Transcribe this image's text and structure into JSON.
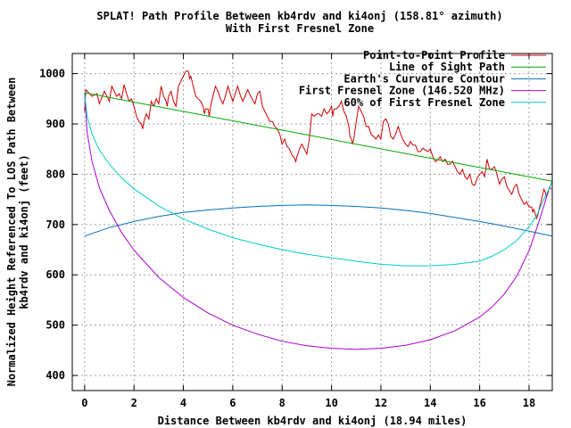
{
  "chart_data": {
    "type": "line",
    "title": "SPLAT! Path Profile Between kb4rdv and ki4onj (158.81° azimuth)",
    "subtitle": "With First Fresnel Zone",
    "xlabel": "Distance Between kb4rdv and ki4onj (18.94 miles)",
    "ylabel_line1": "Normalized Height Referenced To LOS Path Between",
    "ylabel_line2": "kb4rdv and ki4onj (feet)",
    "xlim": [
      -0.5,
      18.94
    ],
    "ylim": [
      370,
      1040
    ],
    "x_ticks": [
      0,
      2,
      4,
      6,
      8,
      10,
      12,
      14,
      16,
      18
    ],
    "y_ticks": [
      400,
      500,
      600,
      700,
      800,
      900,
      1000
    ],
    "grid": true,
    "legend_position": "top-right",
    "series": [
      {
        "name": "Point-to-Point Profile",
        "color": "#cc0000",
        "points": [
          [
            0,
            925
          ],
          [
            0.05,
            968
          ],
          [
            0.3,
            955
          ],
          [
            0.5,
            960
          ],
          [
            0.6,
            940
          ],
          [
            0.8,
            965
          ],
          [
            1.0,
            945
          ],
          [
            1.1,
            975
          ],
          [
            1.3,
            955
          ],
          [
            1.4,
            960
          ],
          [
            1.5,
            950
          ],
          [
            1.6,
            978
          ],
          [
            1.7,
            960
          ],
          [
            1.8,
            945
          ],
          [
            1.9,
            950
          ],
          [
            2.0,
            935
          ],
          [
            2.1,
            915
          ],
          [
            2.2,
            905
          ],
          [
            2.3,
            900
          ],
          [
            2.35,
            890
          ],
          [
            2.4,
            905
          ],
          [
            2.5,
            920
          ],
          [
            2.6,
            910
          ],
          [
            2.7,
            945
          ],
          [
            2.8,
            935
          ],
          [
            2.9,
            950
          ],
          [
            3.0,
            940
          ],
          [
            3.1,
            975
          ],
          [
            3.2,
            955
          ],
          [
            3.3,
            945
          ],
          [
            3.35,
            935
          ],
          [
            3.4,
            955
          ],
          [
            3.5,
            965
          ],
          [
            3.6,
            945
          ],
          [
            3.7,
            935
          ],
          [
            3.8,
            975
          ],
          [
            3.9,
            985
          ],
          [
            4.0,
            995
          ],
          [
            4.1,
            1005
          ],
          [
            4.2,
            1005
          ],
          [
            4.25,
            990
          ],
          [
            4.3,
            995
          ],
          [
            4.4,
            975
          ],
          [
            4.5,
            955
          ],
          [
            4.6,
            950
          ],
          [
            4.7,
            945
          ],
          [
            4.8,
            935
          ],
          [
            4.85,
            920
          ],
          [
            4.9,
            930
          ],
          [
            5.0,
            930
          ],
          [
            5.05,
            915
          ],
          [
            5.1,
            935
          ],
          [
            5.2,
            955
          ],
          [
            5.3,
            975
          ],
          [
            5.4,
            965
          ],
          [
            5.5,
            950
          ],
          [
            5.6,
            940
          ],
          [
            5.7,
            955
          ],
          [
            5.8,
            975
          ],
          [
            5.9,
            960
          ],
          [
            6.0,
            945
          ],
          [
            6.1,
            960
          ],
          [
            6.2,
            975
          ],
          [
            6.3,
            958
          ],
          [
            6.4,
            945
          ],
          [
            6.5,
            955
          ],
          [
            6.6,
            968
          ],
          [
            6.7,
            958
          ],
          [
            6.8,
            948
          ],
          [
            6.9,
            940
          ],
          [
            7.0,
            960
          ],
          [
            7.1,
            965
          ],
          [
            7.2,
            935
          ],
          [
            7.3,
            925
          ],
          [
            7.4,
            915
          ],
          [
            7.5,
            905
          ],
          [
            7.6,
            905
          ],
          [
            7.7,
            895
          ],
          [
            7.8,
            890
          ],
          [
            7.9,
            880
          ],
          [
            8.0,
            860
          ],
          [
            8.1,
            870
          ],
          [
            8.2,
            855
          ],
          [
            8.3,
            850
          ],
          [
            8.4,
            838
          ],
          [
            8.5,
            832
          ],
          [
            8.55,
            825
          ],
          [
            8.6,
            835
          ],
          [
            8.7,
            850
          ],
          [
            8.8,
            860
          ],
          [
            8.9,
            850
          ],
          [
            9.0,
            840
          ],
          [
            9.1,
            870
          ],
          [
            9.2,
            920
          ],
          [
            9.3,
            915
          ],
          [
            9.4,
            920
          ],
          [
            9.5,
            920
          ],
          [
            9.6,
            915
          ],
          [
            9.7,
            930
          ],
          [
            9.8,
            920
          ],
          [
            9.9,
            925
          ],
          [
            10.0,
            935
          ],
          [
            10.05,
            915
          ],
          [
            10.1,
            930
          ],
          [
            10.2,
            930
          ],
          [
            10.3,
            935
          ],
          [
            10.4,
            945
          ],
          [
            10.5,
            925
          ],
          [
            10.6,
            915
          ],
          [
            10.7,
            895
          ],
          [
            10.75,
            875
          ],
          [
            10.8,
            870
          ],
          [
            10.85,
            860
          ],
          [
            10.9,
            870
          ],
          [
            11.0,
            905
          ],
          [
            11.05,
            920
          ],
          [
            11.1,
            935
          ],
          [
            11.2,
            925
          ],
          [
            11.3,
            915
          ],
          [
            11.4,
            895
          ],
          [
            11.5,
            895
          ],
          [
            11.6,
            880
          ],
          [
            11.7,
            875
          ],
          [
            11.8,
            870
          ],
          [
            11.9,
            878
          ],
          [
            12.0,
            870
          ],
          [
            12.1,
            905
          ],
          [
            12.2,
            910
          ],
          [
            12.3,
            900
          ],
          [
            12.4,
            875
          ],
          [
            12.5,
            870
          ],
          [
            12.6,
            880
          ],
          [
            12.7,
            895
          ],
          [
            12.8,
            880
          ],
          [
            12.9,
            868
          ],
          [
            13.0,
            860
          ],
          [
            13.1,
            855
          ],
          [
            13.2,
            865
          ],
          [
            13.3,
            858
          ],
          [
            13.4,
            858
          ],
          [
            13.5,
            845
          ],
          [
            13.6,
            845
          ],
          [
            13.7,
            852
          ],
          [
            13.8,
            848
          ],
          [
            13.9,
            845
          ],
          [
            14.0,
            850
          ],
          [
            14.1,
            835
          ],
          [
            14.2,
            825
          ],
          [
            14.3,
            828
          ],
          [
            14.4,
            835
          ],
          [
            14.5,
            825
          ],
          [
            14.6,
            830
          ],
          [
            14.7,
            820
          ],
          [
            14.8,
            820
          ],
          [
            14.9,
            826
          ],
          [
            15.0,
            815
          ],
          [
            15.1,
            805
          ],
          [
            15.2,
            800
          ],
          [
            15.3,
            810
          ],
          [
            15.4,
            795
          ],
          [
            15.5,
            790
          ],
          [
            15.6,
            800
          ],
          [
            15.7,
            780
          ],
          [
            15.8,
            778
          ],
          [
            15.9,
            792
          ],
          [
            16.0,
            800
          ],
          [
            16.1,
            805
          ],
          [
            16.2,
            795
          ],
          [
            16.3,
            830
          ],
          [
            16.4,
            810
          ],
          [
            16.5,
            810
          ],
          [
            16.6,
            815
          ],
          [
            16.7,
            800
          ],
          [
            16.8,
            780
          ],
          [
            16.9,
            790
          ],
          [
            17.0,
            795
          ],
          [
            17.1,
            775
          ],
          [
            17.2,
            768
          ],
          [
            17.3,
            760
          ],
          [
            17.4,
            775
          ],
          [
            17.5,
            780
          ],
          [
            17.6,
            760
          ],
          [
            17.7,
            750
          ],
          [
            17.8,
            740
          ],
          [
            17.9,
            745
          ],
          [
            18.0,
            735
          ],
          [
            18.1,
            735
          ],
          [
            18.15,
            725
          ],
          [
            18.2,
            730
          ],
          [
            18.3,
            712
          ],
          [
            18.35,
            718
          ],
          [
            18.4,
            730
          ],
          [
            18.5,
            748
          ],
          [
            18.6,
            770
          ],
          [
            18.65,
            765
          ],
          [
            18.7,
            755
          ],
          [
            18.75,
            760
          ],
          [
            18.8,
            770
          ],
          [
            18.85,
            773
          ],
          [
            18.9,
            770
          ]
        ]
      },
      {
        "name": "Line of Sight Path",
        "color": "#00aa00",
        "points": [
          [
            0,
            962
          ],
          [
            18.94,
            786
          ]
        ]
      },
      {
        "name": "Earth's Curvature Contour",
        "color": "#0070c0",
        "points": [
          [
            0,
            677
          ],
          [
            1,
            694
          ],
          [
            2,
            706
          ],
          [
            3,
            716
          ],
          [
            4,
            724
          ],
          [
            5,
            729
          ],
          [
            6,
            733
          ],
          [
            7,
            736
          ],
          [
            8,
            738
          ],
          [
            9,
            739
          ],
          [
            10,
            738
          ],
          [
            11,
            736
          ],
          [
            12,
            733
          ],
          [
            13,
            728
          ],
          [
            14,
            722
          ],
          [
            15,
            714
          ],
          [
            16,
            706
          ],
          [
            17,
            697
          ],
          [
            18,
            687
          ],
          [
            18.94,
            677
          ]
        ]
      },
      {
        "name": "First Fresnel Zone (146.520 MHz)",
        "color": "#aa00cc",
        "points": [
          [
            0,
            962
          ],
          [
            0.1,
            884
          ],
          [
            0.3,
            826
          ],
          [
            0.6,
            773
          ],
          [
            1,
            728
          ],
          [
            1.5,
            684
          ],
          [
            2,
            649
          ],
          [
            3,
            595
          ],
          [
            4,
            555
          ],
          [
            5,
            524
          ],
          [
            6,
            500
          ],
          [
            7,
            482
          ],
          [
            8,
            468
          ],
          [
            9,
            459
          ],
          [
            10,
            454
          ],
          [
            11,
            452
          ],
          [
            12,
            454
          ],
          [
            13,
            460
          ],
          [
            14,
            471
          ],
          [
            15,
            489
          ],
          [
            16,
            516
          ],
          [
            16.5,
            536
          ],
          [
            17,
            562
          ],
          [
            17.5,
            597
          ],
          [
            18,
            648
          ],
          [
            18.3,
            691
          ],
          [
            18.6,
            737
          ],
          [
            18.8,
            770
          ],
          [
            18.94,
            786
          ]
        ]
      },
      {
        "name": "60% of First Fresnel Zone",
        "color": "#00cccc",
        "points": [
          [
            0,
            962
          ],
          [
            0.1,
            915
          ],
          [
            0.3,
            880
          ],
          [
            0.6,
            848
          ],
          [
            1,
            820
          ],
          [
            1.5,
            793
          ],
          [
            2,
            771
          ],
          [
            3,
            737
          ],
          [
            4,
            711
          ],
          [
            5,
            691
          ],
          [
            6,
            674
          ],
          [
            7,
            661
          ],
          [
            8,
            650
          ],
          [
            9,
            641
          ],
          [
            10,
            634
          ],
          [
            11,
            627
          ],
          [
            12,
            621
          ],
          [
            13,
            618
          ],
          [
            14,
            618
          ],
          [
            15,
            621
          ],
          [
            16,
            627
          ],
          [
            16.5,
            637
          ],
          [
            17,
            650
          ],
          [
            17.5,
            668
          ],
          [
            18,
            696
          ],
          [
            18.3,
            717
          ],
          [
            18.6,
            750
          ],
          [
            18.8,
            770
          ],
          [
            18.94,
            786
          ]
        ]
      }
    ]
  }
}
